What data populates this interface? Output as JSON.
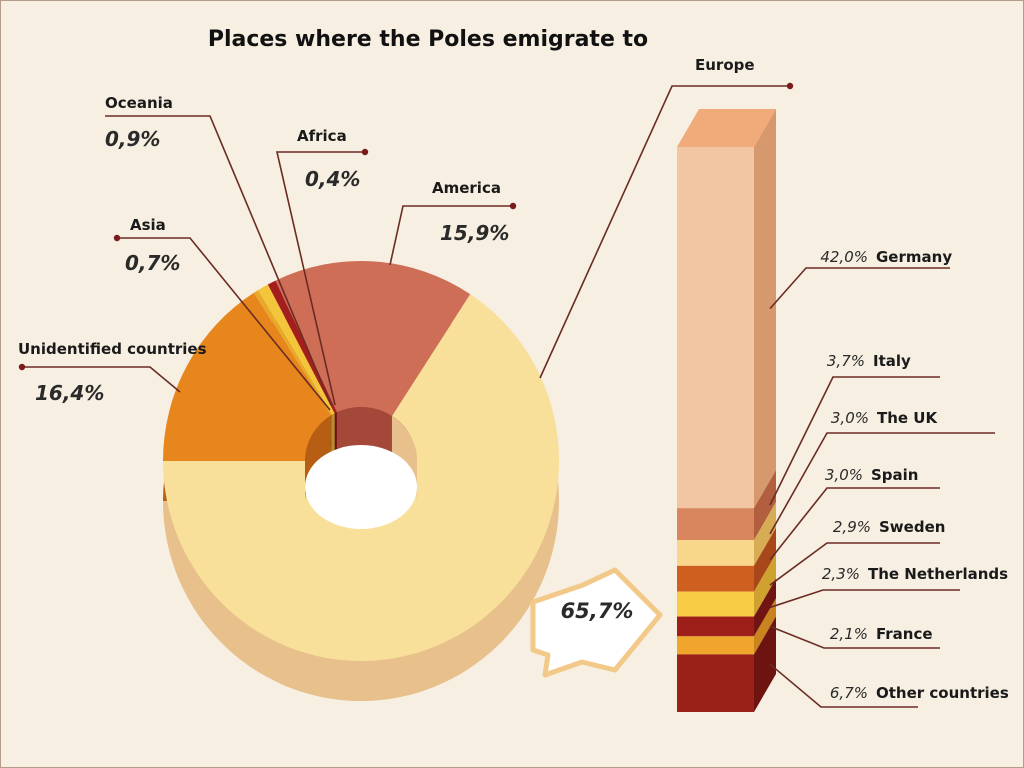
{
  "chart_data": [
    {
      "type": "pie",
      "title": "Places where the Poles emigrate to",
      "slices": [
        {
          "name": "Europe",
          "value": 65.7,
          "label": "",
          "color": "#f8df9a",
          "side": "#e7c08c"
        },
        {
          "name": "Unidentified countries",
          "value": 16.4,
          "label": "16,4%",
          "color": "#cf6e57",
          "side": "#a4493a"
        },
        {
          "name": "Asia",
          "value": 0.7,
          "label": "0,7%",
          "color": "#a51e1e",
          "side": "#6e1010"
        },
        {
          "name": "Oceania",
          "value": 0.9,
          "label": "0,9%",
          "color": "#f2c53b",
          "side": "#b8902a"
        },
        {
          "name": "Africa",
          "value": 0.4,
          "label": "0,4%",
          "color": "#e8a92a",
          "side": "#a8781a"
        },
        {
          "name": "America",
          "value": 15.9,
          "label": "15,9%",
          "color": "#e8861e",
          "side": "#b65e14"
        }
      ],
      "europe_arrow_label": "65,7%"
    },
    {
      "type": "bar",
      "subtype": "stacked-column",
      "title": "Europe",
      "categories": [
        "Germany",
        "Italy",
        "The UK",
        "Spain",
        "Sweden",
        "The Netherlands",
        "France",
        "Other countries"
      ],
      "values": [
        42.0,
        3.7,
        3.0,
        3.0,
        2.9,
        2.3,
        2.1,
        6.7
      ],
      "labels": [
        "42,0%",
        "3,7%",
        "3,0%",
        "3,0%",
        "2,9%",
        "2,3%",
        "2,1%",
        "6,7%"
      ],
      "colors": [
        "#f3c6a3",
        "#d9855e",
        "#f8d68a",
        "#cf5f1e",
        "#f8cc45",
        "#9e1f1a",
        "#f0a52c",
        "#9a2118"
      ],
      "side_colors": [
        "#d6996e",
        "#b15f3e",
        "#d6ad55",
        "#a8471a",
        "#cfa12e",
        "#701512",
        "#c98420",
        "#6d1410"
      ],
      "top_color": "#f1aa7a"
    }
  ]
}
